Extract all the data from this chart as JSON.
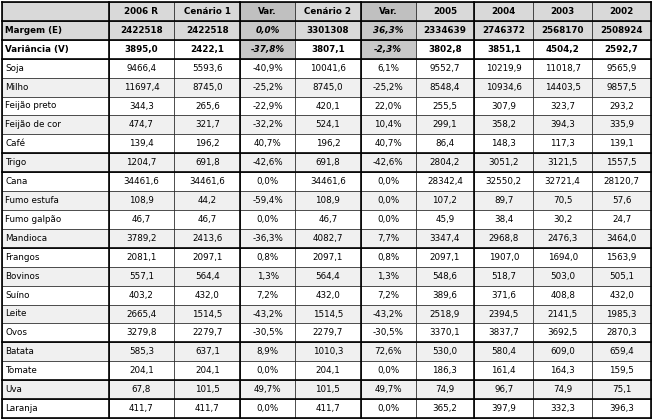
{
  "columns": [
    "",
    "2006 R",
    "Cenário 1",
    "Var.",
    "Cenário 2",
    "Var.",
    "2005",
    "2004",
    "2003",
    "2002"
  ],
  "rows": [
    [
      "Margem (E)",
      "2422518",
      "2422518",
      "0,0%",
      "3301308",
      "36,3%",
      "2334639",
      "2746372",
      "2568170",
      "2508924"
    ],
    [
      "Variância (V)",
      "3895,0",
      "2422,1",
      "-37,8%",
      "3807,1",
      "-2,3%",
      "3802,8",
      "3851,1",
      "4504,2",
      "2592,7"
    ],
    [
      "Soja",
      "9466,4",
      "5593,6",
      "-40,9%",
      "10041,6",
      "6,1%",
      "9552,7",
      "10219,9",
      "11018,7",
      "9565,9"
    ],
    [
      "Milho",
      "11697,4",
      "8745,0",
      "-25,2%",
      "8745,0",
      "-25,2%",
      "8548,4",
      "10934,6",
      "14403,5",
      "9857,5"
    ],
    [
      "Feijão preto",
      "344,3",
      "265,6",
      "-22,9%",
      "420,1",
      "22,0%",
      "255,5",
      "307,9",
      "323,7",
      "293,2"
    ],
    [
      "Feijão de cor",
      "474,7",
      "321,7",
      "-32,2%",
      "524,1",
      "10,4%",
      "299,1",
      "358,2",
      "394,3",
      "335,9"
    ],
    [
      "Café",
      "139,4",
      "196,2",
      "40,7%",
      "196,2",
      "40,7%",
      "86,4",
      "148,3",
      "117,3",
      "139,1"
    ],
    [
      "Trigo",
      "1204,7",
      "691,8",
      "-42,6%",
      "691,8",
      "-42,6%",
      "2804,2",
      "3051,2",
      "3121,5",
      "1557,5"
    ],
    [
      "Cana",
      "34461,6",
      "34461,6",
      "0,0%",
      "34461,6",
      "0,0%",
      "28342,4",
      "32550,2",
      "32721,4",
      "28120,7"
    ],
    [
      "Fumo estufa",
      "108,9",
      "44,2",
      "-59,4%",
      "108,9",
      "0,0%",
      "107,2",
      "89,7",
      "70,5",
      "57,6"
    ],
    [
      "Fumo galpão",
      "46,7",
      "46,7",
      "0,0%",
      "46,7",
      "0,0%",
      "45,9",
      "38,4",
      "30,2",
      "24,7"
    ],
    [
      "Mandioca",
      "3789,2",
      "2413,6",
      "-36,3%",
      "4082,7",
      "7,7%",
      "3347,4",
      "2968,8",
      "2476,3",
      "3464,0"
    ],
    [
      "Frangos",
      "2081,1",
      "2097,1",
      "0,8%",
      "2097,1",
      "0,8%",
      "2097,1",
      "1907,0",
      "1694,0",
      "1563,9"
    ],
    [
      "Bovinos",
      "557,1",
      "564,4",
      "1,3%",
      "564,4",
      "1,3%",
      "548,6",
      "518,7",
      "503,0",
      "505,1"
    ],
    [
      "Suíno",
      "403,2",
      "432,0",
      "7,2%",
      "432,0",
      "7,2%",
      "389,6",
      "371,6",
      "408,8",
      "432,0"
    ],
    [
      "Leite",
      "2665,4",
      "1514,5",
      "-43,2%",
      "1514,5",
      "-43,2%",
      "2518,9",
      "2394,5",
      "2141,5",
      "1985,3"
    ],
    [
      "Ovos",
      "3279,8",
      "2279,7",
      "-30,5%",
      "2279,7",
      "-30,5%",
      "3370,1",
      "3837,7",
      "3692,5",
      "2870,3"
    ],
    [
      "Batata",
      "585,3",
      "637,1",
      "8,9%",
      "1010,3",
      "72,6%",
      "530,0",
      "580,4",
      "609,0",
      "659,4"
    ],
    [
      "Tomate",
      "204,1",
      "204,1",
      "0,0%",
      "204,1",
      "0,0%",
      "186,3",
      "161,4",
      "164,3",
      "159,5"
    ],
    [
      "Uva",
      "67,8",
      "101,5",
      "49,7%",
      "101,5",
      "49,7%",
      "74,9",
      "96,7",
      "74,9",
      "75,1"
    ],
    [
      "Laranja",
      "411,7",
      "411,7",
      "0,0%",
      "411,7",
      "0,0%",
      "365,2",
      "397,9",
      "332,3",
      "396,3"
    ]
  ],
  "col_props": [
    1.52,
    0.94,
    0.94,
    0.78,
    0.94,
    0.78,
    0.84,
    0.84,
    0.84,
    0.84
  ],
  "header_bg": "#d9d9d9",
  "var_col_bg": "#c0c0c0",
  "margem_bg": "#d9d9d9",
  "var_data_bg": "#c8c8c8",
  "white": "#ffffff",
  "light_gray": "#f0f0f0",
  "thick_lw": 1.2,
  "thin_lw": 0.4,
  "fontsize": 6.3,
  "thick_h_after_data_rows": [
    0,
    1,
    6,
    7,
    11,
    16,
    18,
    19,
    20
  ],
  "thick_v_after_cols": [
    0,
    2,
    4,
    6
  ]
}
